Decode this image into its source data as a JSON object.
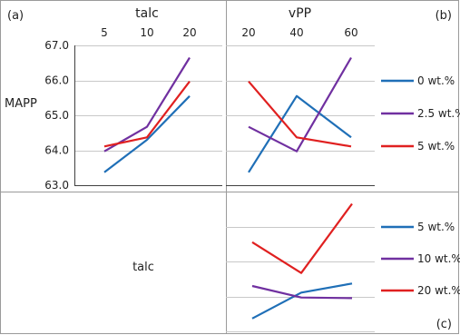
{
  "panel_labels": {
    "a": "(a)",
    "b": "(b)",
    "c": "(c)"
  },
  "row_label_top": "MAPP",
  "row_label_bottom": "talc",
  "colors": {
    "blue": "#1f6fb7",
    "purple": "#7030a0",
    "red": "#e02020",
    "grid": "#c8c8c8",
    "frame": "#9a9a9a",
    "axis": "#404040"
  },
  "chart_data": [
    {
      "id": "a",
      "type": "line",
      "title": "talc",
      "categories": [
        "5",
        "10",
        "20"
      ],
      "ylim": [
        63.0,
        67.0
      ],
      "yticks": [
        "63.0",
        "64.0",
        "65.0",
        "66.0",
        "67.0"
      ],
      "grid": true,
      "series": [
        {
          "name": "0 wt.%",
          "color": "#1f6fb7",
          "values": [
            63.37,
            64.3,
            65.55
          ]
        },
        {
          "name": "2.5 wt.%",
          "color": "#7030a0",
          "values": [
            63.97,
            64.67,
            66.65
          ]
        },
        {
          "name": "5 wt.%",
          "color": "#e02020",
          "values": [
            64.11,
            64.37,
            65.97
          ]
        }
      ]
    },
    {
      "id": "b",
      "type": "line",
      "title": "vPP",
      "categories": [
        "20",
        "40",
        "60"
      ],
      "ylim": [
        63.0,
        67.0
      ],
      "grid": true,
      "legend": "right",
      "series": [
        {
          "name": "0 wt.%",
          "color": "#1f6fb7",
          "values": [
            63.37,
            65.55,
            64.37
          ]
        },
        {
          "name": "2.5 wt.%",
          "color": "#7030a0",
          "values": [
            64.67,
            63.97,
            66.65
          ]
        },
        {
          "name": "5 wt.%",
          "color": "#e02020",
          "values": [
            65.97,
            64.37,
            64.11
          ]
        }
      ]
    },
    {
      "id": "c",
      "type": "line",
      "categories": [
        "20",
        "40",
        "60"
      ],
      "ylim": [
        63.0,
        67.0
      ],
      "grid": true,
      "legend": "right",
      "series": [
        {
          "name": "5 wt.%",
          "color": "#1f6fb7",
          "values": [
            63.37,
            64.11,
            64.37
          ]
        },
        {
          "name": "10 wt.%",
          "color": "#7030a0",
          "values": [
            64.3,
            63.97,
            63.95
          ]
        },
        {
          "name": "20 wt.%",
          "color": "#e02020",
          "values": [
            65.55,
            64.67,
            66.65
          ]
        }
      ]
    }
  ]
}
